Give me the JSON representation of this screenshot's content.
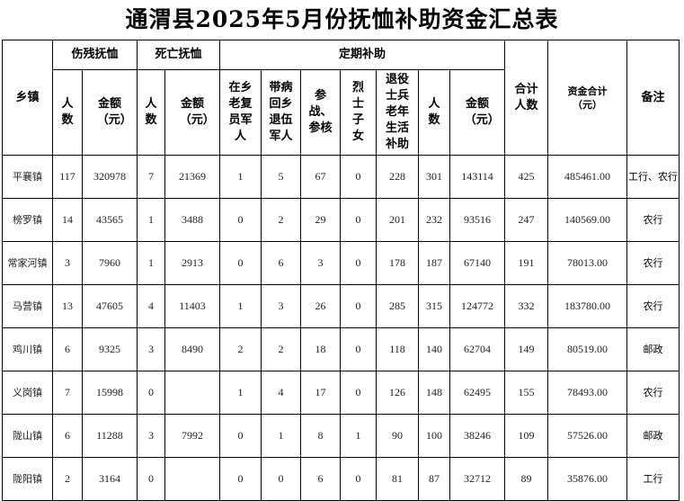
{
  "title": "通渭县2025年5月份抚恤补助资金汇总表",
  "headers": {
    "town": "乡镇",
    "injury_group": "伤残抚恤",
    "death_group": "死亡抚恤",
    "regular_group": "定期补助",
    "count": "人数",
    "amount": "金额（元）",
    "rural_veteran": "在乡老复员军人",
    "sick_veteran": "带病回乡退伍军人",
    "war_nuclear": "参战、参核",
    "martyr_children": "烈士子女",
    "retired_soldier": "退役士兵老年生活补助",
    "total_count": "合计人数",
    "total_amount": "资金合计（元）",
    "remark": "备注"
  },
  "rows": [
    [
      "平襄镇",
      "117",
      "320978",
      "7",
      "21369",
      "1",
      "5",
      "67",
      "0",
      "228",
      "301",
      "143114",
      "425",
      "485461.00",
      "工行、农行"
    ],
    [
      "榜罗镇",
      "14",
      "43565",
      "1",
      "3488",
      "0",
      "2",
      "29",
      "0",
      "201",
      "232",
      "93516",
      "247",
      "140569.00",
      "农行"
    ],
    [
      "常家河镇",
      "3",
      "7960",
      "1",
      "2913",
      "0",
      "6",
      "3",
      "0",
      "178",
      "187",
      "67140",
      "191",
      "78013.00",
      "农行"
    ],
    [
      "马营镇",
      "13",
      "47605",
      "4",
      "11403",
      "1",
      "3",
      "26",
      "0",
      "285",
      "315",
      "124772",
      "332",
      "183780.00",
      "农行"
    ],
    [
      "鸡川镇",
      "6",
      "9325",
      "3",
      "8490",
      "2",
      "2",
      "18",
      "0",
      "118",
      "140",
      "62704",
      "149",
      "80519.00",
      "邮政"
    ],
    [
      "义岗镇",
      "7",
      "15998",
      "0",
      "",
      "1",
      "4",
      "17",
      "0",
      "126",
      "148",
      "62495",
      "155",
      "78493.00",
      "农行"
    ],
    [
      "陇山镇",
      "6",
      "11288",
      "3",
      "7992",
      "0",
      "1",
      "8",
      "1",
      "90",
      "100",
      "38246",
      "109",
      "57526.00",
      "邮政"
    ],
    [
      "陇阳镇",
      "2",
      "3164",
      "0",
      "",
      "0",
      "0",
      "6",
      "0",
      "81",
      "87",
      "32712",
      "89",
      "35876.00",
      "工行"
    ]
  ]
}
